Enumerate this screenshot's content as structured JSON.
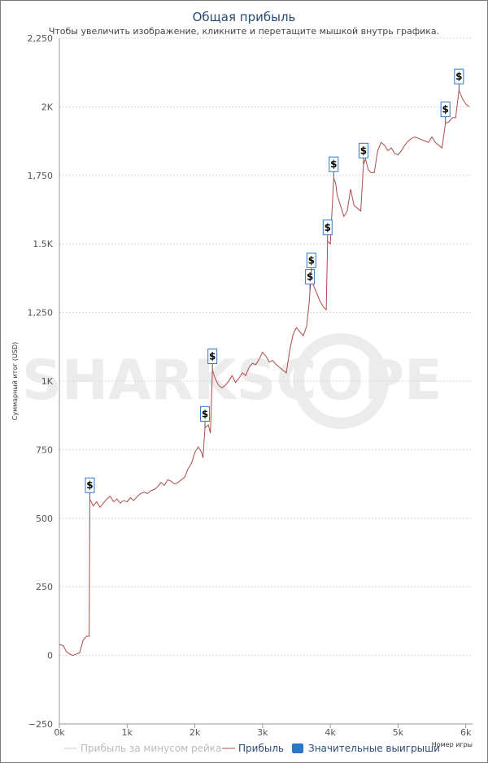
{
  "chart_data": {
    "type": "line",
    "title": "Общая прибыль",
    "subtitle": "Чтобы увеличить изображение, кликните и перетащите мышкой внутрь графика.",
    "xlabel": "Номер игры",
    "ylabel": "Суммарный итог (USD)",
    "xlim": [
      0,
      6100
    ],
    "ylim": [
      -250,
      2250
    ],
    "x_ticks": [
      {
        "value": 0,
        "label": "0k"
      },
      {
        "value": 1000,
        "label": "1k"
      },
      {
        "value": 2000,
        "label": "2k"
      },
      {
        "value": 3000,
        "label": "3k"
      },
      {
        "value": 4000,
        "label": "4k"
      },
      {
        "value": 5000,
        "label": "5k"
      },
      {
        "value": 6000,
        "label": "6k"
      }
    ],
    "y_ticks": [
      {
        "value": -250,
        "label": "−250"
      },
      {
        "value": 0,
        "label": "0"
      },
      {
        "value": 250,
        "label": "250"
      },
      {
        "value": 500,
        "label": "500"
      },
      {
        "value": 750,
        "label": "750"
      },
      {
        "value": 1000,
        "label": "1K"
      },
      {
        "value": 1250,
        "label": "1,250"
      },
      {
        "value": 1500,
        "label": "1.5K"
      },
      {
        "value": 1750,
        "label": "1,750"
      },
      {
        "value": 2000,
        "label": "2K"
      },
      {
        "value": 2250,
        "label": "2,250"
      }
    ],
    "grid": true,
    "legend_position": "bottom",
    "series": [
      {
        "name": "Прибыль за минусом рейка",
        "color": "#cccccc",
        "visible": false,
        "points": []
      },
      {
        "name": "Прибыль",
        "color": "#b04a4a",
        "visible": true,
        "points": [
          [
            0,
            40
          ],
          [
            60,
            35
          ],
          [
            100,
            15
          ],
          [
            150,
            5
          ],
          [
            200,
            0
          ],
          [
            250,
            5
          ],
          [
            300,
            10
          ],
          [
            350,
            55
          ],
          [
            400,
            70
          ],
          [
            440,
            70
          ],
          [
            450,
            570
          ],
          [
            500,
            545
          ],
          [
            550,
            560
          ],
          [
            600,
            540
          ],
          [
            650,
            555
          ],
          [
            700,
            570
          ],
          [
            750,
            580
          ],
          [
            800,
            560
          ],
          [
            850,
            570
          ],
          [
            900,
            555
          ],
          [
            950,
            565
          ],
          [
            1000,
            560
          ],
          [
            1050,
            575
          ],
          [
            1100,
            565
          ],
          [
            1150,
            580
          ],
          [
            1200,
            590
          ],
          [
            1250,
            595
          ],
          [
            1300,
            590
          ],
          [
            1350,
            600
          ],
          [
            1400,
            605
          ],
          [
            1450,
            615
          ],
          [
            1500,
            630
          ],
          [
            1550,
            620
          ],
          [
            1600,
            640
          ],
          [
            1650,
            635
          ],
          [
            1700,
            625
          ],
          [
            1750,
            630
          ],
          [
            1800,
            640
          ],
          [
            1850,
            650
          ],
          [
            1900,
            680
          ],
          [
            1950,
            700
          ],
          [
            2000,
            740
          ],
          [
            2050,
            760
          ],
          [
            2100,
            740
          ],
          [
            2120,
            720
          ],
          [
            2150,
            830
          ],
          [
            2200,
            840
          ],
          [
            2230,
            810
          ],
          [
            2260,
            1040
          ],
          [
            2300,
            1010
          ],
          [
            2350,
            985
          ],
          [
            2400,
            975
          ],
          [
            2450,
            985
          ],
          [
            2500,
            1000
          ],
          [
            2550,
            1020
          ],
          [
            2600,
            995
          ],
          [
            2650,
            1010
          ],
          [
            2700,
            1030
          ],
          [
            2750,
            1020
          ],
          [
            2800,
            1050
          ],
          [
            2850,
            1065
          ],
          [
            2900,
            1060
          ],
          [
            2950,
            1080
          ],
          [
            3000,
            1105
          ],
          [
            3050,
            1090
          ],
          [
            3100,
            1070
          ],
          [
            3150,
            1075
          ],
          [
            3200,
            1060
          ],
          [
            3250,
            1050
          ],
          [
            3300,
            1040
          ],
          [
            3350,
            1030
          ],
          [
            3400,
            1110
          ],
          [
            3450,
            1170
          ],
          [
            3500,
            1195
          ],
          [
            3550,
            1180
          ],
          [
            3600,
            1165
          ],
          [
            3650,
            1200
          ],
          [
            3690,
            1290
          ],
          [
            3700,
            1330
          ],
          [
            3720,
            1390
          ],
          [
            3750,
            1350
          ],
          [
            3800,
            1320
          ],
          [
            3850,
            1290
          ],
          [
            3900,
            1270
          ],
          [
            3940,
            1260
          ],
          [
            3960,
            1510
          ],
          [
            4000,
            1500
          ],
          [
            4050,
            1740
          ],
          [
            4080,
            1720
          ],
          [
            4100,
            1680
          ],
          [
            4150,
            1640
          ],
          [
            4200,
            1600
          ],
          [
            4250,
            1620
          ],
          [
            4300,
            1700
          ],
          [
            4350,
            1640
          ],
          [
            4400,
            1630
          ],
          [
            4450,
            1620
          ],
          [
            4490,
            1790
          ],
          [
            4520,
            1810
          ],
          [
            4560,
            1770
          ],
          [
            4600,
            1760
          ],
          [
            4650,
            1760
          ],
          [
            4700,
            1840
          ],
          [
            4750,
            1870
          ],
          [
            4800,
            1860
          ],
          [
            4850,
            1840
          ],
          [
            4900,
            1850
          ],
          [
            4950,
            1830
          ],
          [
            5000,
            1825
          ],
          [
            5050,
            1840
          ],
          [
            5100,
            1860
          ],
          [
            5150,
            1875
          ],
          [
            5200,
            1885
          ],
          [
            5250,
            1890
          ],
          [
            5300,
            1885
          ],
          [
            5350,
            1880
          ],
          [
            5400,
            1875
          ],
          [
            5450,
            1870
          ],
          [
            5500,
            1890
          ],
          [
            5550,
            1870
          ],
          [
            5600,
            1860
          ],
          [
            5650,
            1850
          ],
          [
            5700,
            1940
          ],
          [
            5750,
            1945
          ],
          [
            5800,
            1960
          ],
          [
            5850,
            1960
          ],
          [
            5900,
            2060
          ],
          [
            5950,
            2030
          ],
          [
            6000,
            2010
          ],
          [
            6050,
            2000
          ]
        ]
      },
      {
        "name": "Значительные выигрыши",
        "color": "#2b78c9",
        "visible": true,
        "type": "flags",
        "marker_label": "$",
        "points": [
          [
            450,
            570
          ],
          [
            2150,
            830
          ],
          [
            2260,
            1040
          ],
          [
            3700,
            1330
          ],
          [
            3720,
            1390
          ],
          [
            3960,
            1510
          ],
          [
            4050,
            1740
          ],
          [
            4490,
            1790
          ],
          [
            5700,
            1940
          ],
          [
            5900,
            2060
          ]
        ]
      }
    ],
    "watermark": "SHARKSCOPE"
  }
}
